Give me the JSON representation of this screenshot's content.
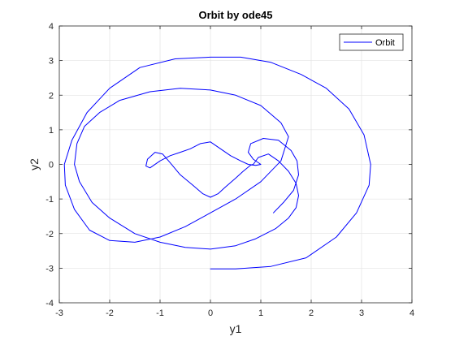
{
  "chart_data": {
    "type": "line",
    "title": "Orbit by ode45",
    "xlabel": "y1",
    "ylabel": "y2",
    "xlim": [
      -3,
      4
    ],
    "ylim": [
      -4,
      4
    ],
    "xticks": [
      -3,
      -2,
      -1,
      0,
      1,
      2,
      3,
      4
    ],
    "yticks": [
      -4,
      -3,
      -2,
      -1,
      0,
      1,
      2,
      3,
      4
    ],
    "grid": true,
    "legend": {
      "position": "top-right",
      "entries": [
        "Orbit"
      ]
    },
    "series": [
      {
        "name": "Orbit",
        "color": "#0000ff",
        "x": [
          1.25,
          1.45,
          1.65,
          1.75,
          1.72,
          1.6,
          1.35,
          1.05,
          0.8,
          0.75,
          0.85,
          1.0,
          0.9,
          0.75,
          0.6,
          0.4,
          0.2,
          0.0,
          -0.2,
          -0.4,
          -0.6,
          -0.8,
          -1.0,
          -1.2,
          -1.28,
          -1.25,
          -1.1,
          -0.95,
          -0.8,
          -0.6,
          -0.35,
          -0.15,
          0.0,
          0.15,
          0.3,
          0.5,
          0.65,
          0.8,
          0.85,
          0.95,
          1.15,
          1.35,
          1.55,
          1.7,
          1.75,
          1.7,
          1.55,
          1.3,
          0.9,
          0.5,
          0.0,
          -0.5,
          -1.0,
          -1.5,
          -2.0,
          -2.35,
          -2.6,
          -2.7,
          -2.65,
          -2.5,
          -2.2,
          -1.8,
          -1.2,
          -0.6,
          0.0,
          0.5,
          1.0,
          1.4,
          1.55,
          1.4,
          1.0,
          0.5,
          0.0,
          -0.5,
          -1.0,
          -1.5,
          -2.0,
          -2.4,
          -2.7,
          -2.88,
          -2.9,
          -2.75,
          -2.45,
          -2.0,
          -1.4,
          -0.7,
          0.0,
          0.6,
          1.2,
          1.8,
          2.3,
          2.75,
          3.05,
          3.18,
          3.15,
          2.9,
          2.5,
          1.9,
          1.2,
          0.5,
          0.0
        ],
        "y": [
          -1.4,
          -1.1,
          -0.75,
          -0.3,
          0.1,
          0.4,
          0.7,
          0.75,
          0.6,
          0.35,
          0.15,
          0.0,
          -0.03,
          0.0,
          0.1,
          0.25,
          0.45,
          0.65,
          0.6,
          0.45,
          0.35,
          0.25,
          0.1,
          -0.1,
          -0.05,
          0.15,
          0.35,
          0.3,
          0.05,
          -0.3,
          -0.6,
          -0.85,
          -0.95,
          -0.85,
          -0.65,
          -0.4,
          -0.2,
          -0.02,
          0.0,
          0.2,
          0.3,
          0.1,
          -0.2,
          -0.55,
          -0.9,
          -1.25,
          -1.55,
          -1.85,
          -2.15,
          -2.35,
          -2.45,
          -2.4,
          -2.25,
          -2.0,
          -1.55,
          -1.1,
          -0.5,
          0.0,
          0.6,
          1.1,
          1.5,
          1.85,
          2.1,
          2.2,
          2.15,
          2.0,
          1.7,
          1.2,
          0.8,
          0.1,
          -0.5,
          -1.0,
          -1.4,
          -1.8,
          -2.1,
          -2.25,
          -2.2,
          -1.9,
          -1.3,
          -0.6,
          0.0,
          0.7,
          1.5,
          2.2,
          2.8,
          3.05,
          3.1,
          3.1,
          2.95,
          2.6,
          2.2,
          1.6,
          0.85,
          0.0,
          -0.6,
          -1.4,
          -2.1,
          -2.7,
          -2.95,
          -3.02,
          -3.02
        ]
      }
    ]
  }
}
